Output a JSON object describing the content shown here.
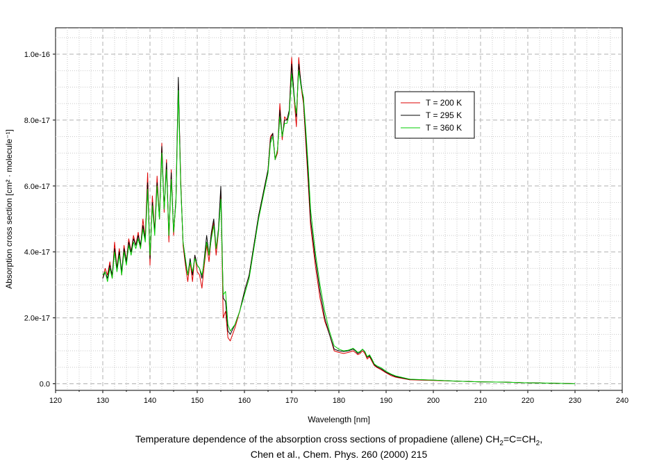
{
  "caption": {
    "line1_part1": "Temperature dependence of the absorption cross sections of propadiene (allene) CH",
    "line1_sub1": "2",
    "line1_part2": "=C=CH",
    "line1_sub2": "2",
    "line1_part3": ",",
    "line2": "Chen et al., Chem. Phys. 260 (2000) 215"
  },
  "chart_data": {
    "type": "line",
    "title": "",
    "xlabel": "Wavelength [nm]",
    "ylabel": "Absorption cross section [cm² · molecule⁻¹]",
    "xlim": [
      120,
      240
    ],
    "ylim": [
      -2e-18,
      1.08e-16
    ],
    "x_ticks": [
      120,
      130,
      140,
      150,
      160,
      170,
      180,
      190,
      200,
      210,
      220,
      230,
      240
    ],
    "y_ticks": [
      0,
      2e-17,
      4e-17,
      6e-17,
      8e-17,
      1e-16
    ],
    "y_tick_labels": [
      "0.0",
      "2.0e-17",
      "4.0e-17",
      "6.0e-17",
      "8.0e-17",
      "1.0e-16"
    ],
    "grid": true,
    "legend_position": "top-right",
    "series": [
      {
        "name": "T = 200 K",
        "color": "#dd0000",
        "x": [
          130,
          130.5,
          131,
          131.5,
          132,
          132.5,
          133,
          133.5,
          134,
          134.5,
          135,
          135.5,
          136,
          136.5,
          137,
          137.5,
          138,
          138.5,
          139,
          139.5,
          140,
          140.5,
          141,
          141.5,
          142,
          142.5,
          143,
          143.5,
          144,
          144.5,
          145,
          145.5,
          146,
          146.5,
          147,
          147.5,
          148,
          148.5,
          149,
          149.5,
          150,
          150.5,
          151,
          151.5,
          152,
          152.5,
          153,
          153.5,
          154,
          154.5,
          155,
          155.5,
          156,
          156.5,
          157,
          158,
          159,
          160,
          161,
          162,
          163,
          164,
          165,
          165.5,
          166,
          166.5,
          167,
          167.5,
          168,
          168.5,
          169,
          169.5,
          170,
          170.5,
          171,
          171.5,
          172,
          172.5,
          173,
          173.5,
          174,
          175,
          176,
          177,
          178,
          179,
          180,
          181,
          182,
          183,
          183.5,
          184,
          184.5,
          185,
          185.5,
          186,
          186.5,
          187,
          187.5,
          188,
          189,
          190,
          191,
          192,
          195,
          200,
          205,
          210,
          215,
          220,
          225,
          230
        ],
        "y": [
          3.2,
          3.5,
          3.3,
          3.7,
          3.2,
          4.3,
          3.5,
          4.1,
          3.3,
          4.2,
          3.7,
          4.4,
          4.0,
          4.5,
          4.2,
          4.6,
          4.1,
          5.0,
          4.4,
          6.4,
          3.6,
          5.7,
          4.6,
          6.3,
          5.0,
          7.3,
          5.2,
          6.8,
          4.3,
          6.5,
          4.5,
          5.6,
          9.1,
          6.2,
          4.2,
          3.6,
          3.1,
          3.7,
          3.1,
          3.9,
          3.4,
          3.3,
          2.9,
          3.6,
          4.2,
          3.7,
          4.5,
          4.9,
          3.9,
          4.6,
          5.9,
          2.0,
          2.2,
          1.4,
          1.3,
          1.7,
          2.2,
          2.8,
          3.3,
          4.2,
          5.1,
          5.8,
          6.5,
          7.5,
          7.6,
          6.8,
          7.0,
          8.5,
          7.4,
          8.1,
          8.0,
          8.3,
          9.9,
          8.7,
          7.8,
          9.9,
          9.0,
          8.5,
          7.3,
          6.1,
          4.8,
          3.6,
          2.6,
          1.9,
          1.5,
          1.0,
          0.95,
          0.92,
          0.95,
          1.0,
          0.95,
          0.88,
          0.92,
          1.0,
          0.92,
          0.75,
          0.82,
          0.68,
          0.55,
          0.5,
          0.42,
          0.33,
          0.25,
          0.2,
          0.12,
          0.1,
          0.08,
          0.06,
          0.05,
          0.03,
          0.02,
          0.0
        ]
      },
      {
        "name": "T = 295 K",
        "color": "#000000",
        "x": [
          130,
          130.5,
          131,
          131.5,
          132,
          132.5,
          133,
          133.5,
          134,
          134.5,
          135,
          135.5,
          136,
          136.5,
          137,
          137.5,
          138,
          138.5,
          139,
          139.5,
          140,
          140.5,
          141,
          141.5,
          142,
          142.5,
          143,
          143.5,
          144,
          144.5,
          145,
          145.5,
          146,
          146.5,
          147,
          147.5,
          148,
          148.5,
          149,
          149.5,
          150,
          150.5,
          151,
          151.5,
          152,
          152.5,
          153,
          153.5,
          154,
          154.5,
          155,
          155.5,
          156,
          156.5,
          157,
          158,
          159,
          160,
          161,
          162,
          163,
          164,
          165,
          165.5,
          166,
          166.5,
          167,
          167.5,
          168,
          168.5,
          169,
          169.5,
          170,
          170.5,
          171,
          171.5,
          172,
          172.5,
          173,
          173.5,
          174,
          175,
          176,
          177,
          178,
          179,
          180,
          181,
          182,
          183,
          183.5,
          184,
          184.5,
          185,
          185.5,
          186,
          186.5,
          187,
          187.5,
          188,
          189,
          190,
          191,
          192,
          195,
          200,
          205,
          210,
          215,
          220,
          225,
          230
        ],
        "y": [
          3.2,
          3.4,
          3.2,
          3.6,
          3.3,
          4.1,
          3.5,
          4.0,
          3.4,
          4.1,
          3.7,
          4.3,
          4.0,
          4.4,
          4.2,
          4.5,
          4.2,
          4.8,
          4.4,
          6.1,
          3.8,
          5.5,
          4.6,
          6.1,
          5.0,
          7.2,
          5.3,
          6.7,
          4.5,
          6.4,
          4.6,
          5.6,
          9.3,
          6.1,
          4.3,
          3.7,
          3.3,
          3.8,
          3.3,
          3.9,
          3.6,
          3.5,
          3.2,
          3.8,
          4.5,
          3.9,
          4.6,
          5.0,
          4.1,
          4.7,
          6.0,
          2.6,
          2.5,
          1.6,
          1.5,
          1.8,
          2.2,
          2.8,
          3.3,
          4.2,
          5.1,
          5.8,
          6.5,
          7.4,
          7.6,
          6.8,
          7.1,
          8.3,
          7.5,
          8.0,
          8.0,
          8.3,
          9.7,
          8.8,
          8.1,
          9.7,
          9.1,
          8.6,
          7.5,
          6.3,
          5.0,
          3.8,
          2.8,
          2.0,
          1.5,
          1.05,
          1.0,
          0.98,
          1.0,
          1.05,
          1.0,
          0.92,
          0.96,
          1.05,
          0.96,
          0.8,
          0.85,
          0.72,
          0.58,
          0.52,
          0.45,
          0.35,
          0.28,
          0.22,
          0.13,
          0.11,
          0.08,
          0.06,
          0.05,
          0.03,
          0.02,
          0.0
        ]
      },
      {
        "name": "T = 360 K",
        "color": "#00cc00",
        "x": [
          130,
          130.5,
          131,
          131.5,
          132,
          132.5,
          133,
          133.5,
          134,
          134.5,
          135,
          135.5,
          136,
          136.5,
          137,
          137.5,
          138,
          138.5,
          139,
          139.5,
          140,
          140.5,
          141,
          141.5,
          142,
          142.5,
          143,
          143.5,
          144,
          144.5,
          145,
          145.5,
          146,
          146.5,
          147,
          147.5,
          148,
          148.5,
          149,
          149.5,
          150,
          150.5,
          151,
          151.5,
          152,
          152.5,
          153,
          153.5,
          154,
          154.5,
          155,
          155.5,
          156,
          156.5,
          157,
          158,
          159,
          160,
          161,
          162,
          163,
          164,
          165,
          165.5,
          166,
          166.5,
          167,
          167.5,
          168,
          168.5,
          169,
          169.5,
          170,
          170.5,
          171,
          171.5,
          172,
          172.5,
          173,
          173.5,
          174,
          175,
          176,
          177,
          178,
          179,
          180,
          181,
          182,
          183,
          183.5,
          184,
          184.5,
          185,
          185.5,
          186,
          186.5,
          187,
          187.5,
          188,
          189,
          190,
          191,
          192,
          195,
          200,
          205,
          210,
          215,
          220,
          225,
          230
        ],
        "y": [
          3.3,
          3.4,
          3.1,
          3.5,
          3.2,
          4.0,
          3.4,
          3.9,
          3.3,
          4.0,
          3.6,
          4.2,
          3.9,
          4.3,
          4.1,
          4.4,
          4.1,
          4.7,
          4.3,
          5.9,
          3.9,
          5.4,
          4.5,
          6.0,
          5.0,
          7.0,
          5.3,
          6.5,
          4.5,
          6.2,
          4.6,
          5.5,
          8.9,
          6.0,
          4.3,
          3.8,
          3.3,
          3.7,
          3.4,
          3.8,
          3.6,
          3.5,
          3.3,
          3.7,
          4.3,
          3.9,
          4.4,
          4.8,
          4.1,
          4.6,
          5.6,
          2.7,
          2.8,
          1.8,
          1.6,
          1.8,
          2.2,
          2.7,
          3.2,
          4.1,
          5.0,
          5.7,
          6.4,
          7.3,
          7.5,
          6.8,
          7.1,
          8.1,
          7.5,
          7.9,
          7.9,
          8.2,
          9.4,
          8.7,
          8.2,
          9.5,
          9.0,
          8.7,
          7.7,
          6.6,
          5.3,
          4.0,
          3.0,
          2.2,
          1.6,
          1.15,
          1.05,
          1.0,
          1.02,
          1.08,
          1.02,
          0.95,
          0.98,
          1.05,
          0.98,
          0.82,
          0.88,
          0.75,
          0.6,
          0.55,
          0.48,
          0.38,
          0.3,
          0.24,
          0.14,
          0.11,
          0.08,
          0.06,
          0.05,
          0.03,
          0.02,
          0.0
        ]
      }
    ],
    "y_scale_note": "values in series are in units of 1e-17"
  }
}
